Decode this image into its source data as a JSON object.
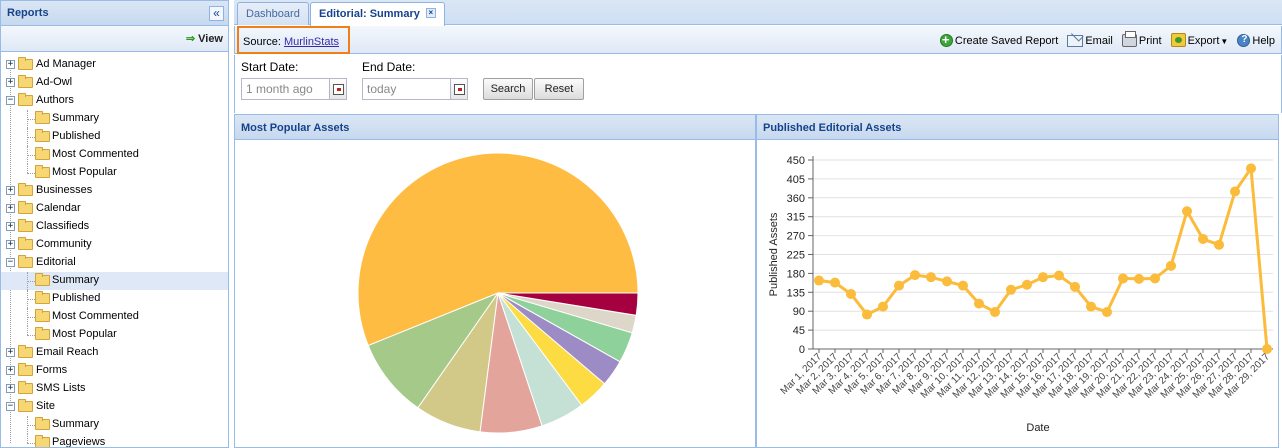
{
  "left_panel": {
    "title": "Reports",
    "view_label": "View",
    "tree": [
      {
        "label": "Ad Manager",
        "level": 0,
        "expanded": false
      },
      {
        "label": "Ad-Owl",
        "level": 0,
        "expanded": false
      },
      {
        "label": "Authors",
        "level": 0,
        "expanded": true
      },
      {
        "label": "Summary",
        "level": 1
      },
      {
        "label": "Published",
        "level": 1
      },
      {
        "label": "Most Commented",
        "level": 1
      },
      {
        "label": "Most Popular",
        "level": 1
      },
      {
        "label": "Businesses",
        "level": 0,
        "expanded": false
      },
      {
        "label": "Calendar",
        "level": 0,
        "expanded": false
      },
      {
        "label": "Classifieds",
        "level": 0,
        "expanded": false
      },
      {
        "label": "Community",
        "level": 0,
        "expanded": false
      },
      {
        "label": "Editorial",
        "level": 0,
        "expanded": true
      },
      {
        "label": "Summary",
        "level": 1,
        "selected": true
      },
      {
        "label": "Published",
        "level": 1
      },
      {
        "label": "Most Commented",
        "level": 1
      },
      {
        "label": "Most Popular",
        "level": 1
      },
      {
        "label": "Email Reach",
        "level": 0,
        "expanded": false
      },
      {
        "label": "Forms",
        "level": 0,
        "expanded": false
      },
      {
        "label": "SMS Lists",
        "level": 0,
        "expanded": false
      },
      {
        "label": "Site",
        "level": 0,
        "expanded": true
      },
      {
        "label": "Summary",
        "level": 1
      },
      {
        "label": "Pageviews",
        "level": 1
      }
    ]
  },
  "tabs": [
    {
      "label": "Dashboard",
      "active": false
    },
    {
      "label": "Editorial: Summary",
      "active": true
    }
  ],
  "toolbar": {
    "source_prefix": "Source:",
    "source_link": "MurlinStats",
    "create_saved_report": "Create Saved Report",
    "email": "Email",
    "print": "Print",
    "export": "Export",
    "help": "Help"
  },
  "filters": {
    "start_label": "Start Date:",
    "start_value": "1 month ago",
    "end_label": "End Date:",
    "end_value": "today",
    "search_label": "Search",
    "reset_label": "Reset"
  },
  "panels": {
    "pie_title": "Most Popular Assets",
    "line_title": "Published Editorial Assets"
  },
  "chart_data": [
    {
      "type": "pie",
      "title": "",
      "values": [
        55.0,
        9.0,
        7.5,
        7.0,
        5.0,
        3.5,
        3.0,
        3.5,
        2.0,
        2.5
      ],
      "colors": [
        "#ffbc42",
        "#a4c989",
        "#d2c988",
        "#e3a49b",
        "#c5e1d6",
        "#fcdc42",
        "#9d8bc6",
        "#8ed19a",
        "#dcd7c8",
        "#a50040"
      ]
    },
    {
      "type": "line",
      "title": "",
      "xlabel": "Date",
      "ylabel": "Published Assets",
      "ylim": [
        0,
        450
      ],
      "yticks": [
        0,
        45,
        90,
        135,
        180,
        225,
        270,
        315,
        360,
        405,
        450
      ],
      "color": "#fbbb3b",
      "categories": [
        "Mar 1, 2017",
        "Mar 2, 2017",
        "Mar 3, 2017",
        "Mar 4, 2017",
        "Mar 5, 2017",
        "Mar 6, 2017",
        "Mar 7, 2017",
        "Mar 8, 2017",
        "Mar 9, 2017",
        "Mar 10, 2017",
        "Mar 11, 2017",
        "Mar 12, 2017",
        "Mar 13, 2017",
        "Mar 14, 2017",
        "Mar 15, 2017",
        "Mar 16, 2017",
        "Mar 17, 2017",
        "Mar 18, 2017",
        "Mar 19, 2017",
        "Mar 20, 2017",
        "Mar 21, 2017",
        "Mar 22, 2017",
        "Mar 23, 2017",
        "Mar 24, 2017",
        "Mar 25, 2017",
        "Mar 26, 2017",
        "Mar 27, 2017",
        "Mar 28, 2017",
        "Mar 29, 2017"
      ],
      "values": [
        163,
        158,
        131,
        82,
        101,
        151,
        176,
        171,
        161,
        151,
        108,
        88,
        141,
        153,
        171,
        175,
        148,
        101,
        88,
        168,
        167,
        168,
        198,
        328,
        262,
        248,
        375,
        430,
        0
      ]
    }
  ]
}
